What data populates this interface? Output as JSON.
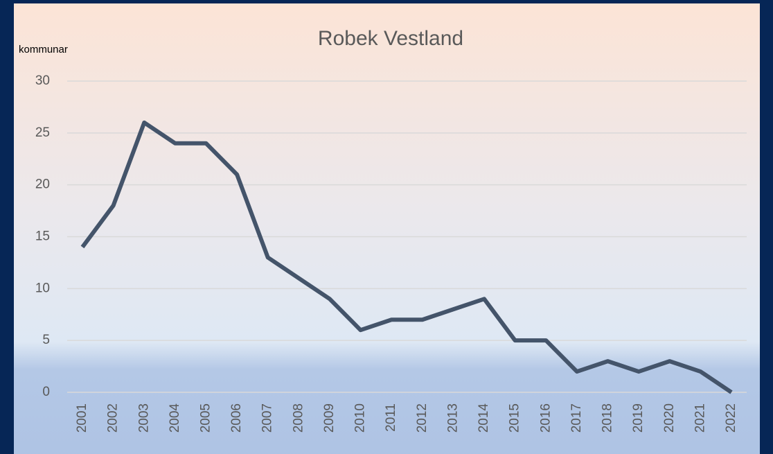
{
  "chart_data": {
    "type": "line",
    "title": "Robek Vestland",
    "y_label": "kommunar",
    "categories": [
      "2001",
      "2002",
      "2003",
      "2004",
      "2005",
      "2006",
      "2007",
      "2008",
      "2009",
      "2010",
      "2011",
      "2012",
      "2013",
      "2014",
      "2015",
      "2016",
      "2017",
      "2018",
      "2019",
      "2020",
      "2021",
      "2022"
    ],
    "series": [
      {
        "name": "Robek Vestland",
        "color": "#44546a",
        "values": [
          14,
          18,
          26,
          24,
          24,
          21,
          13,
          11,
          9,
          6,
          7,
          7,
          8,
          9,
          5,
          5,
          2,
          3,
          2,
          3,
          2,
          0
        ]
      }
    ],
    "ylim": [
      0,
      30
    ],
    "yticks": [
      0,
      5,
      10,
      15,
      20,
      25,
      30
    ],
    "grid": true
  }
}
